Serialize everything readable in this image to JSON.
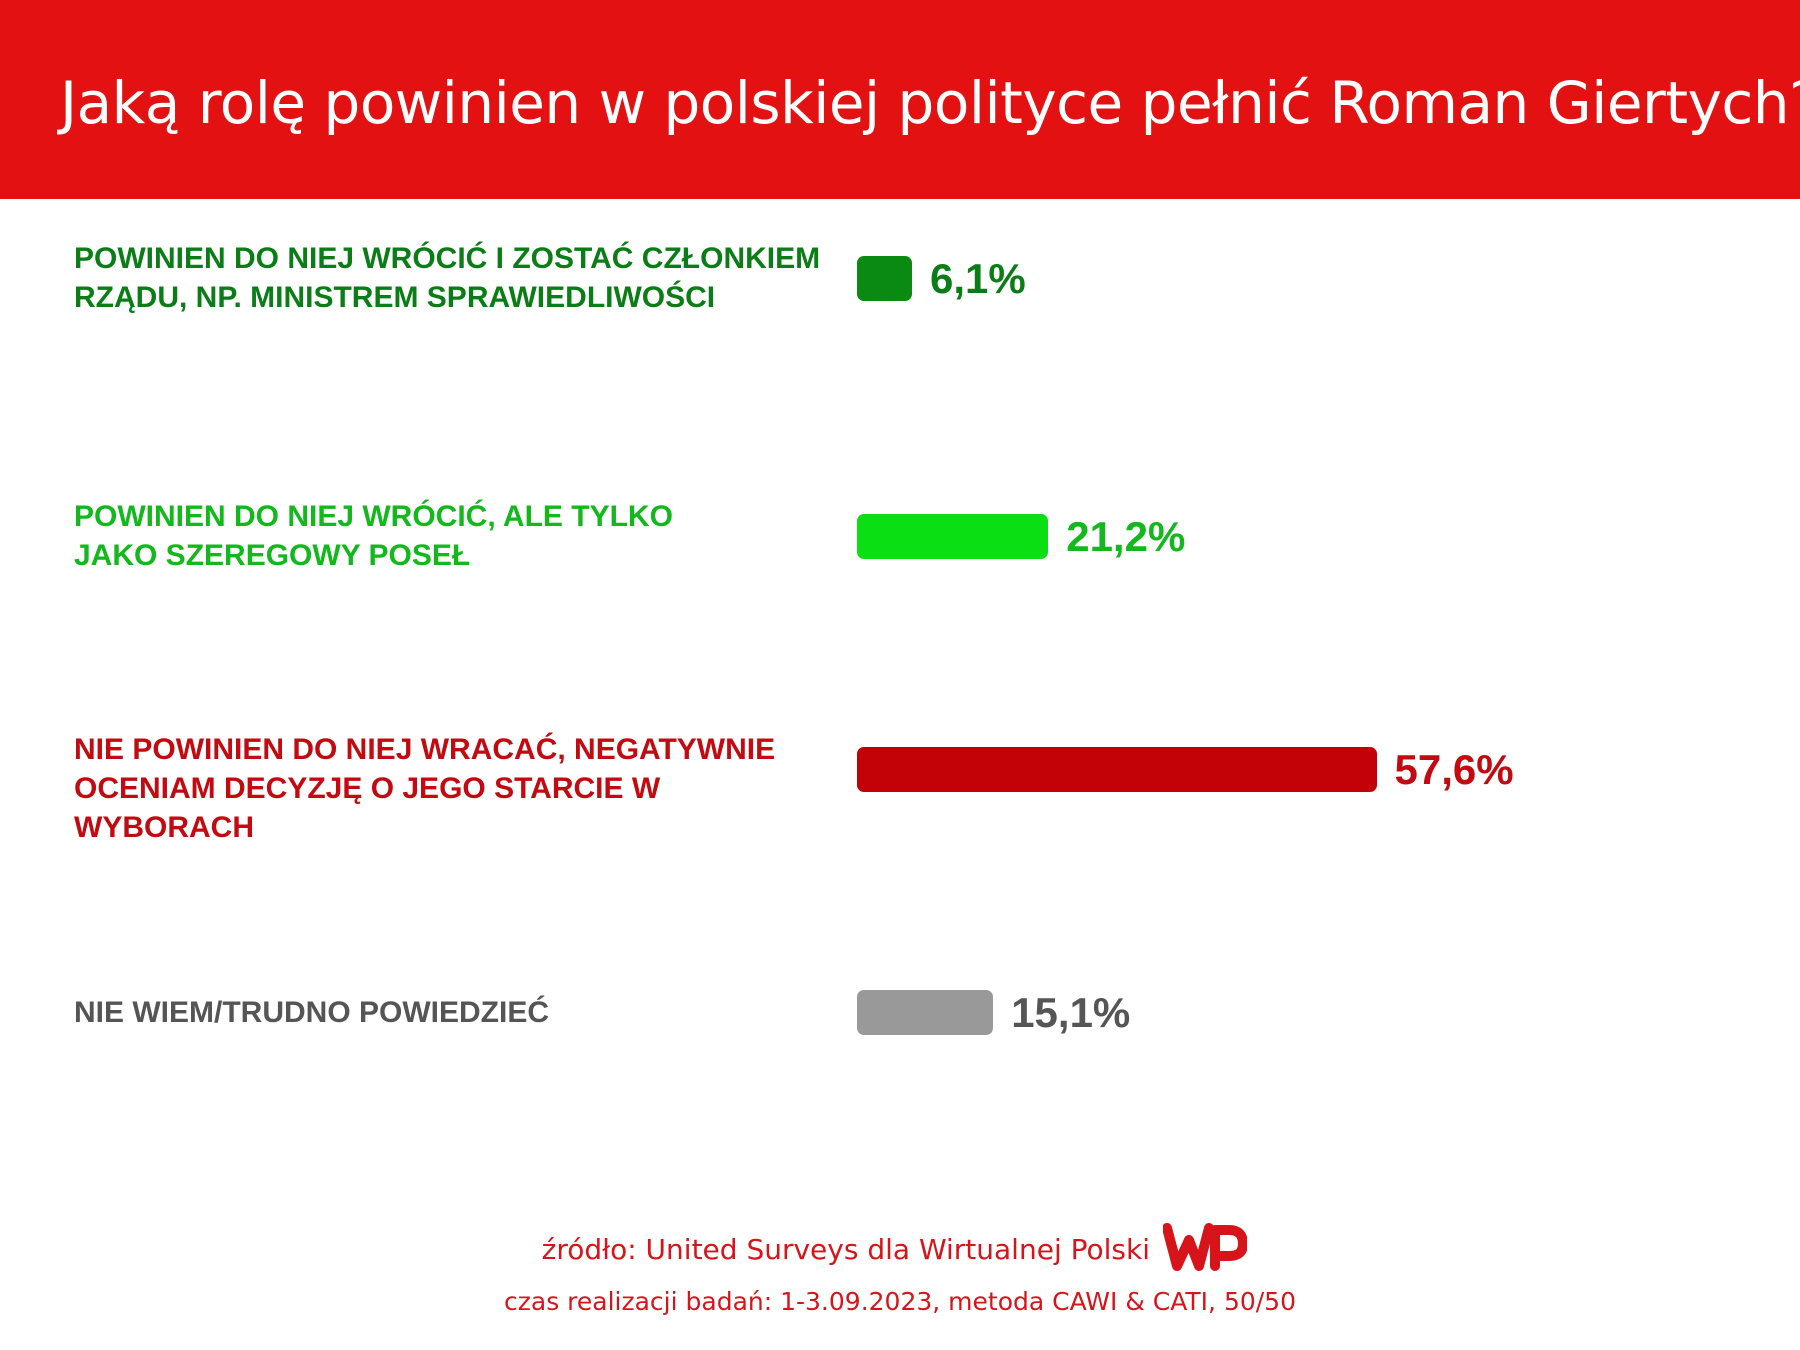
{
  "header": {
    "title": "Jaką rolę powinien w polskiej polityce pełnić Roman Giertych?"
  },
  "chart_data": {
    "type": "bar",
    "orientation": "horizontal",
    "title": "Jaką rolę powinien w polskiej polityce pełnić Roman Giertych?",
    "unit": "%",
    "categories": [
      [
        "POWINIEN DO NIEJ WRÓCIĆ I ZOSTAĆ CZŁONKIEM",
        "RZĄDU, NP. MINISTREM SPRAWIEDLIWOŚCI"
      ],
      [
        "POWINIEN DO NIEJ WRÓCIĆ, ALE TYLKO",
        "JAKO SZEREGOWY POSEŁ"
      ],
      [
        "NIE POWINIEN DO NIEJ WRACAĆ, NEGATYWNIE",
        "OCENIAM DECYZJĘ O JEGO STARCIE W WYBORACH"
      ],
      [
        "NIE WIEM/TRUDNO POWIEDZIEĆ"
      ]
    ],
    "values": [
      6.1,
      21.2,
      57.6,
      15.1
    ],
    "value_labels": [
      "6,1%",
      "21,2%",
      "57,6%",
      "15,1%"
    ],
    "colors": [
      "#0a8a12",
      "#0adf14",
      "#c20207",
      "#999999"
    ],
    "label_colors": [
      "#0b7d16",
      "#13b81c",
      "#c20a10",
      "#555555"
    ],
    "legend": "none",
    "grid": false
  },
  "footer": {
    "source": "źródło: United Surveys dla Wirtualnej Polski",
    "method": "czas realizacji badań: 1-3.09.2023, metoda CAWI & CATI, 50/50",
    "logo": "WP",
    "logo_color": "#d8141b"
  }
}
